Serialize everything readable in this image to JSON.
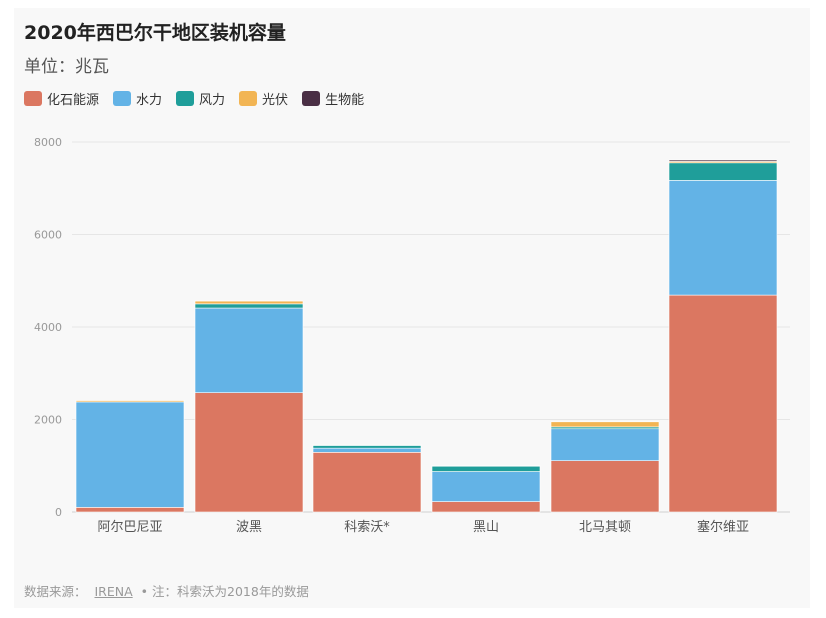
{
  "title": "2020年西巴尔干地区装机容量",
  "subtitle": "单位：兆瓦",
  "legend": [
    {
      "name": "化石能源",
      "color": "#db7761"
    },
    {
      "name": "水力",
      "color": "#63b3e6"
    },
    {
      "name": "风力",
      "color": "#1f9e9a"
    },
    {
      "name": "光伏",
      "color": "#f2b554"
    },
    {
      "name": "生物能",
      "color": "#4a2f45"
    }
  ],
  "source": {
    "prefix": "数据来源：",
    "link_text": "IRENA",
    "note": "• 注：科索沃为2018年的数据"
  },
  "chart_data": {
    "type": "bar",
    "stacked": true,
    "categories": [
      "阿尔巴尼亚",
      "波黑",
      "科索沃*",
      "黑山",
      "北马其顿",
      "塞尔维亚"
    ],
    "series": [
      {
        "name": "化石能源",
        "color": "#db7761",
        "values": [
          100,
          2580,
          1290,
          225,
          1110,
          4690
        ]
      },
      {
        "name": "水力",
        "color": "#63b3e6",
        "values": [
          2280,
          1830,
          90,
          650,
          690,
          2480
        ]
      },
      {
        "name": "风力",
        "color": "#1f9e9a",
        "values": [
          0,
          90,
          60,
          120,
          40,
          380
        ]
      },
      {
        "name": "光伏",
        "color": "#f2b554",
        "values": [
          30,
          60,
          10,
          5,
          110,
          30
        ]
      },
      {
        "name": "生物能",
        "color": "#4a2f45",
        "values": [
          0,
          0,
          0,
          0,
          0,
          30
        ]
      }
    ],
    "yticks": [
      0,
      2000,
      4000,
      6000,
      8000
    ],
    "ylim": [
      0,
      8000
    ],
    "grid": true
  }
}
